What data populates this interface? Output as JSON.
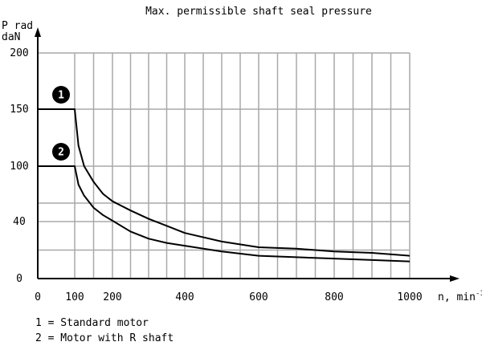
{
  "chart_data": {
    "type": "line",
    "title": "Max. permissible shaft seal pressure",
    "ylabel_line1": "P rad",
    "ylabel_line2": "daN",
    "xlabel": "n, min",
    "xlabel_sup": "-1",
    "ylim": [
      0,
      200
    ],
    "xlim": [
      0,
      1000
    ],
    "grid": true,
    "y_ticks": [
      {
        "label": "0",
        "value": 0
      },
      {
        "label": "40",
        "value": 40
      },
      {
        "label": "100",
        "value": 100
      },
      {
        "label": "150",
        "value": 150
      },
      {
        "label": "200",
        "value": 200
      }
    ],
    "x_ticks": [
      {
        "label": "0",
        "value": 0
      },
      {
        "label": "100",
        "value": 100
      },
      {
        "label": "200",
        "value": 200
      },
      {
        "label": "400",
        "value": 400
      },
      {
        "label": "600",
        "value": 600
      },
      {
        "label": "800",
        "value": 800
      },
      {
        "label": "1000",
        "value": 1000
      }
    ],
    "series": [
      {
        "marker": "1",
        "x": [
          0,
          100,
          110,
          125,
          150,
          175,
          200,
          250,
          300,
          350,
          400,
          500,
          600,
          700,
          800,
          900,
          1000
        ],
        "y": [
          150,
          150,
          118,
          100,
          83,
          70,
          62,
          52,
          43,
          37,
          32,
          26,
          22,
          21,
          19,
          18,
          16
        ]
      },
      {
        "marker": "2",
        "x": [
          0,
          100,
          110,
          125,
          150,
          175,
          200,
          250,
          300,
          350,
          400,
          500,
          600,
          700,
          800,
          900,
          1000
        ],
        "y": [
          100,
          100,
          80,
          68,
          55,
          47,
          41,
          33,
          28,
          25,
          23,
          19,
          16,
          15,
          14,
          13,
          12
        ]
      }
    ],
    "legend": [
      {
        "text": "1 = Standard motor"
      },
      {
        "text": "2 = Motor with R shaft"
      }
    ]
  }
}
